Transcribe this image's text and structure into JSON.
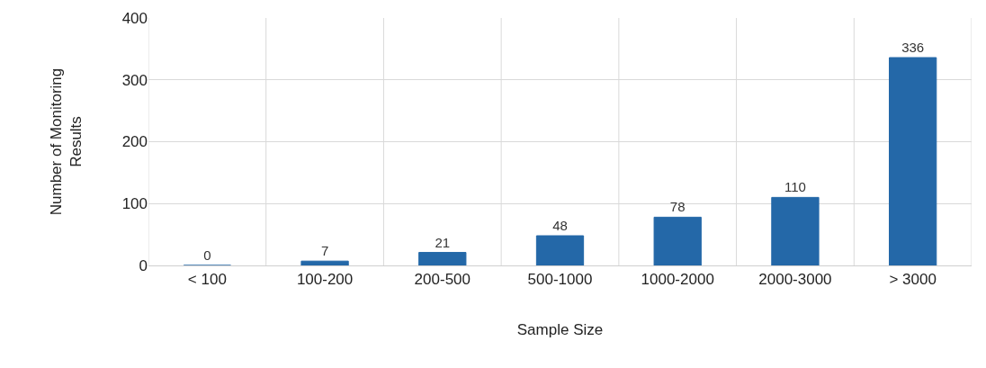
{
  "chart_data": {
    "type": "bar",
    "xlabel": "Sample Size",
    "ylabel": "Number of Monitoring Results",
    "categories": [
      "< 100",
      "100-200",
      "200-500",
      "500-1000",
      "1000-2000",
      "2000-3000",
      "> 3000"
    ],
    "values": [
      0,
      7,
      21,
      48,
      78,
      110,
      336
    ],
    "color": "#2468a8",
    "ylim": [
      0,
      400
    ],
    "yticks": [
      0,
      100,
      200,
      300,
      400
    ],
    "grid": true,
    "data_labels": true
  }
}
